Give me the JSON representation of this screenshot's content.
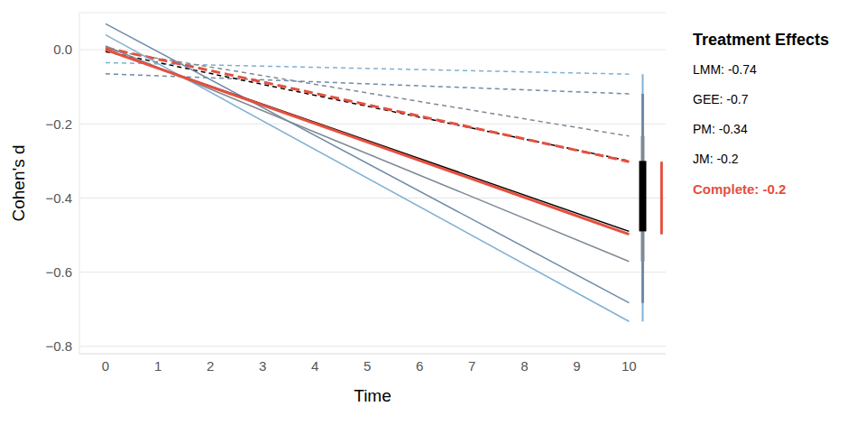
{
  "chart_data": {
    "type": "line",
    "x_label": "Time",
    "y_label": "Cohen's d",
    "legend_title": "Treatment Effects",
    "x": [
      0,
      10
    ],
    "xlim": [
      -0.5,
      10.7
    ],
    "xticks": [
      0,
      1,
      2,
      3,
      4,
      5,
      6,
      7,
      8,
      9,
      10
    ],
    "ylim": [
      -0.82,
      0.1
    ],
    "yticks": [
      {
        "value": 0,
        "label": "0.0"
      },
      {
        "value": -0.2,
        "label": "−0.2"
      },
      {
        "value": -0.4,
        "label": "−0.4"
      },
      {
        "value": -0.6,
        "label": "−0.6"
      },
      {
        "value": -0.8,
        "label": "−0.8"
      }
    ],
    "grid": true,
    "series": [
      {
        "name": "LMM",
        "effect_label": "LMM: -0.74",
        "color": "#7fb0d3",
        "values": [
          0.04,
          -0.733
        ],
        "control": [
          -0.035,
          -0.066
        ]
      },
      {
        "name": "GEE",
        "effect_label": "GEE: -0.7",
        "color": "#6f8ba6",
        "values": [
          0.07,
          -0.683
        ],
        "control": [
          -0.065,
          -0.119
        ]
      },
      {
        "name": "PM",
        "effect_label": "PM: -0.34",
        "color": "#7f8a95",
        "values": [
          0.01,
          -0.571
        ],
        "control": [
          0.0,
          -0.233
        ]
      },
      {
        "name": "JM",
        "effect_label": "JM: -0.2",
        "color": "#000000",
        "values": [
          0.0,
          -0.49
        ],
        "control": [
          -0.005,
          -0.3
        ]
      },
      {
        "name": "Complete",
        "effect_label": "Complete: -0.2",
        "color": "#e4503f",
        "values": [
          0.0,
          -0.498
        ],
        "control": [
          0.005,
          -0.302
        ]
      }
    ]
  }
}
